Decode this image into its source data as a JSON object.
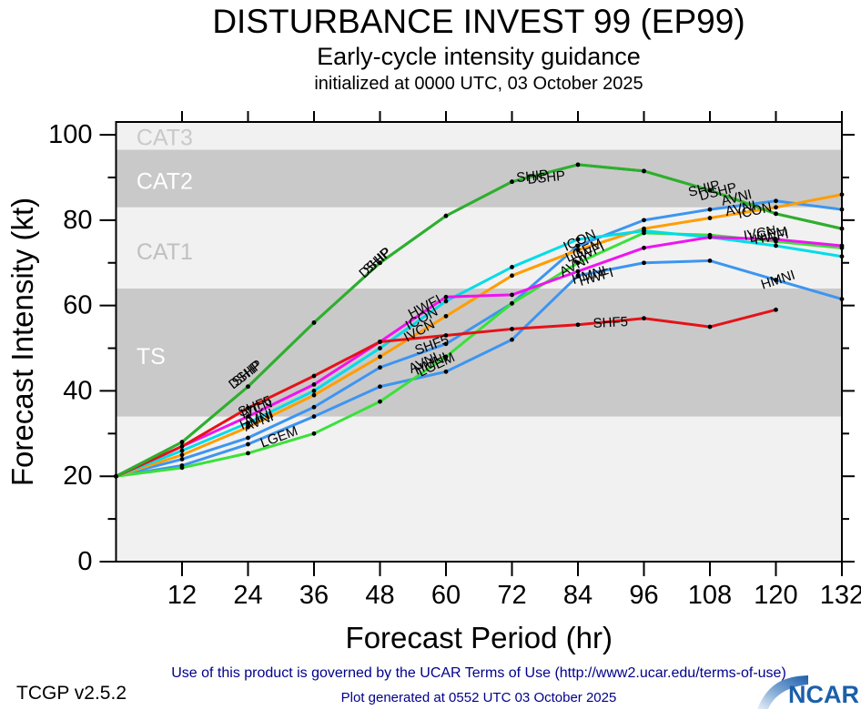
{
  "title": "DISTURBANCE INVEST 99 (EP99)",
  "subtitle": "Early-cycle intensity guidance",
  "init_line": "initialized at 0000 UTC, 03 October 2025",
  "footer": {
    "version": "TCGP v2.5.2",
    "terms": "Use of this product is governed by the UCAR Terms of Use (http://www2.ucar.edu/terms-of-use)",
    "generated": "Plot generated at 0552 UTC   03 October 2025",
    "logo_text": "NCAR",
    "text_color": "#00008b",
    "logo_color": "#1b5faa"
  },
  "chart_data": {
    "type": "line",
    "xlabel": "Forecast Period (hr)",
    "ylabel": "Forecast Intensity (kt)",
    "xlim": [
      0,
      132
    ],
    "ylim": [
      0,
      103
    ],
    "x_ticks": [
      12,
      24,
      36,
      48,
      60,
      72,
      84,
      96,
      108,
      120,
      132
    ],
    "y_ticks_major": [
      0,
      20,
      40,
      60,
      80,
      100
    ],
    "y_ticks_minor": [
      10,
      30,
      50,
      70,
      90
    ],
    "grid": false,
    "legend": "inline-labels",
    "colors": {
      "band_dark": "#c9c9c9",
      "band_light": "#f1f1f1",
      "axis": "#000000"
    },
    "bands": [
      {
        "label": "",
        "from": 0,
        "to": 34,
        "shade": "light",
        "label_kt": 0,
        "label_color": "#c4c4c4"
      },
      {
        "label": "TS",
        "from": 34,
        "to": 64,
        "shade": "dark",
        "label_kt": 48,
        "label_color": "#ffffff"
      },
      {
        "label": "CAT1",
        "from": 64,
        "to": 83,
        "shade": "light",
        "label_kt": 72.5,
        "label_color": "#c0c0c0"
      },
      {
        "label": "CAT2",
        "from": 83,
        "to": 96.5,
        "shade": "dark",
        "label_kt": 89,
        "label_color": "#ffffff"
      },
      {
        "label": "CAT3",
        "from": 96.5,
        "to": 103,
        "shade": "light",
        "label_kt": 99.3,
        "label_color": "#c9c9c9"
      }
    ],
    "band_label_x_hr": 3.7,
    "x_hours": [
      0,
      12,
      24,
      36,
      48,
      60,
      72,
      84,
      96,
      108,
      120,
      132
    ],
    "series": [
      {
        "name": "HMNI",
        "color": "#3d95f0",
        "values": [
          20,
          22.5,
          27.5,
          34,
          41,
          44.5,
          52,
          67,
          70,
          70.5,
          66,
          61.5
        ]
      },
      {
        "name": "AVNI",
        "color": "#3d95f0",
        "values": [
          20,
          24,
          29,
          36.2,
          45.5,
          51,
          60.5,
          74,
          80,
          82.5,
          84.5,
          82.5
        ]
      },
      {
        "name": "LGEM",
        "color": "#3ae13a",
        "values": [
          20,
          22,
          25.4,
          30,
          37.5,
          48,
          60.5,
          70,
          77,
          76.5,
          75,
          73.5
        ]
      },
      {
        "name": "ICON",
        "color": "#ff9d00",
        "values": [
          20,
          25,
          31.5,
          39,
          48,
          57.5,
          67,
          73,
          78,
          80.5,
          83,
          86
        ]
      },
      {
        "name": "HWFI",
        "color": "#00dce8",
        "values": [
          20,
          26,
          32.5,
          40,
          50,
          61,
          69,
          75.5,
          77.5,
          76,
          74,
          71.5
        ]
      },
      {
        "name": "IVCN",
        "color": "#f013f0",
        "values": [
          20,
          27,
          34,
          41.5,
          51.5,
          62,
          62.5,
          68,
          73.5,
          76,
          75.5,
          74
        ]
      },
      {
        "name": "SHF5",
        "color": "#e51218",
        "values": [
          20,
          27,
          36,
          43.5,
          51.5,
          53,
          54.5,
          55.5,
          57,
          55,
          59
        ]
      },
      {
        "name": "DSHP",
        "color": "#2fae2f",
        "values": [
          20,
          28,
          41,
          56,
          70,
          81,
          89,
          93,
          91.5,
          87,
          81.5,
          78
        ]
      },
      {
        "name": "SHIP",
        "color": "#2fae2f",
        "values": [
          20,
          28,
          41,
          56,
          70,
          81,
          89,
          93,
          91.5,
          87,
          81.5,
          78
        ]
      }
    ],
    "annotations": [
      {
        "text": "DSHP",
        "hr": 21.3,
        "kt": 40.3,
        "rot": -38
      },
      {
        "text": "SHIP",
        "hr": 21.9,
        "kt": 40.9,
        "rot": -38
      },
      {
        "text": "SHF5",
        "hr": 22.6,
        "kt": 33.9,
        "rot": -22
      },
      {
        "text": "IVCN",
        "hr": 23.1,
        "kt": 33.5,
        "rot": -22
      },
      {
        "text": "HMNI",
        "hr": 22.9,
        "kt": 30.9,
        "rot": -22
      },
      {
        "text": "AVNI",
        "hr": 23.6,
        "kt": 30.5,
        "rot": -22
      },
      {
        "text": "LGEM",
        "hr": 26.6,
        "kt": 26.7,
        "rot": -20
      },
      {
        "text": "DSHP",
        "hr": 45.1,
        "kt": 66.3,
        "rot": -42
      },
      {
        "text": "SHIP",
        "hr": 45.8,
        "kt": 67.2,
        "rot": -42
      },
      {
        "text": "HWFI",
        "hr": 53.7,
        "kt": 56.9,
        "rot": -28
      },
      {
        "text": "ICON",
        "hr": 53.2,
        "kt": 54.2,
        "rot": -28
      },
      {
        "text": "IVCN",
        "hr": 52.9,
        "kt": 51.4,
        "rot": -28
      },
      {
        "text": "SHF5",
        "hr": 54.7,
        "kt": 48.4,
        "rot": -20
      },
      {
        "text": "AVNI",
        "hr": 53.7,
        "kt": 44.1,
        "rot": -25
      },
      {
        "text": "HMNI",
        "hr": 54.7,
        "kt": 43.7,
        "rot": -25
      },
      {
        "text": "LGEM",
        "hr": 55.4,
        "kt": 43.3,
        "rot": -25
      },
      {
        "text": "SHIP",
        "hr": 72.9,
        "kt": 88.9,
        "rot": -6
      },
      {
        "text": "DSHP",
        "hr": 74.9,
        "kt": 88.5,
        "rot": -6
      },
      {
        "text": "ICON",
        "hr": 81.8,
        "kt": 72.7,
        "rot": -24
      },
      {
        "text": "LGEM",
        "hr": 82.2,
        "kt": 70.1,
        "rot": -24
      },
      {
        "text": "HWFI",
        "hr": 83.2,
        "kt": 69.7,
        "rot": -24
      },
      {
        "text": "AVNI",
        "hr": 81.2,
        "kt": 66.7,
        "rot": -28
      },
      {
        "text": "HMNI",
        "hr": 83.2,
        "kt": 65.0,
        "rot": -16
      },
      {
        "text": "HWFI",
        "hr": 84.5,
        "kt": 64.6,
        "rot": -16
      },
      {
        "text": "SHF5",
        "hr": 86.8,
        "kt": 54.8,
        "rot": -3
      },
      {
        "text": "SHIP",
        "hr": 104.3,
        "kt": 85.5,
        "rot": -14
      },
      {
        "text": "DSHP",
        "hr": 106.3,
        "kt": 84.6,
        "rot": -14
      },
      {
        "text": "AVNI",
        "hr": 110.3,
        "kt": 83.4,
        "rot": -14
      },
      {
        "text": "AVNI",
        "hr": 111.0,
        "kt": 81.0,
        "rot": -12
      },
      {
        "text": "ICON",
        "hr": 113.3,
        "kt": 80.4,
        "rot": -12
      },
      {
        "text": "IVCN",
        "hr": 114.3,
        "kt": 75.3,
        "rot": -10
      },
      {
        "text": "LGEM",
        "hr": 115.3,
        "kt": 74.8,
        "rot": -10
      },
      {
        "text": "HWFI",
        "hr": 116.2,
        "kt": 74.4,
        "rot": -10
      },
      {
        "text": "HMNI",
        "hr": 117.6,
        "kt": 63.8,
        "rot": -18
      }
    ]
  }
}
